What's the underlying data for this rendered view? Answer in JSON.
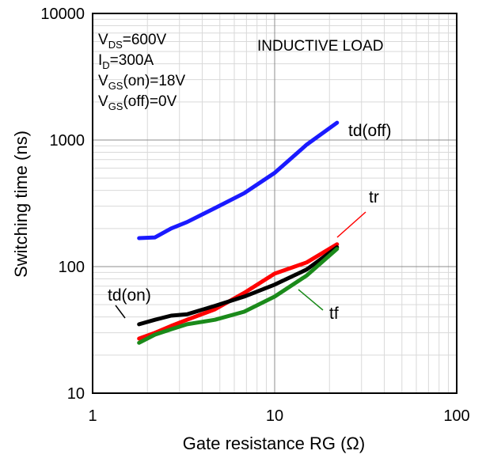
{
  "chart_data": {
    "type": "line",
    "xlabel": "Gate resistance RG (Ω)",
    "ylabel": "Switching time (ns)",
    "x_scale": "log",
    "y_scale": "log",
    "xlim": [
      1,
      100
    ],
    "ylim": [
      10,
      10000
    ],
    "x_ticks": [
      "1",
      "10",
      "100"
    ],
    "y_ticks": [
      "10",
      "100",
      "1000",
      "10000"
    ],
    "grid": true,
    "conditions": {
      "vds_main": "V",
      "vds_sub": "DS",
      "vds_val": "=600V",
      "id_main": "I",
      "id_sub": "D",
      "id_val": "=300A",
      "vgson_main": "V",
      "vgson_sub": "GS",
      "vgson_val": "(on)=18V",
      "vgsoff_main": "V",
      "vgsoff_sub": "GS",
      "vgsoff_val": "(off)=0V"
    },
    "annotation": "INDUCTIVE LOAD",
    "series": [
      {
        "name": "td(off)",
        "color": "#1a1aff",
        "x": [
          1.8,
          2.2,
          2.7,
          3.3,
          4.7,
          6.8,
          10,
          15,
          22
        ],
        "y": [
          168,
          170,
          200,
          225,
          290,
          380,
          550,
          920,
          1370
        ]
      },
      {
        "name": "tr",
        "color": "#ff0000",
        "x": [
          1.8,
          2.2,
          2.7,
          3.3,
          4.7,
          6.8,
          10,
          15,
          22
        ],
        "y": [
          27,
          30,
          34,
          38,
          46,
          62,
          88,
          108,
          150
        ]
      },
      {
        "name": "td(on)",
        "color": "#000000",
        "x": [
          1.8,
          2.2,
          2.7,
          3.3,
          4.7,
          6.8,
          10,
          15,
          22
        ],
        "y": [
          35,
          38,
          41,
          42,
          49,
          58,
          72,
          95,
          142
        ]
      },
      {
        "name": "tf",
        "color": "#1a8a1a",
        "x": [
          1.8,
          2.2,
          2.7,
          3.3,
          4.7,
          6.8,
          10,
          15,
          22
        ],
        "y": [
          25,
          29,
          32,
          35,
          38,
          44,
          58,
          85,
          138
        ]
      }
    ]
  }
}
